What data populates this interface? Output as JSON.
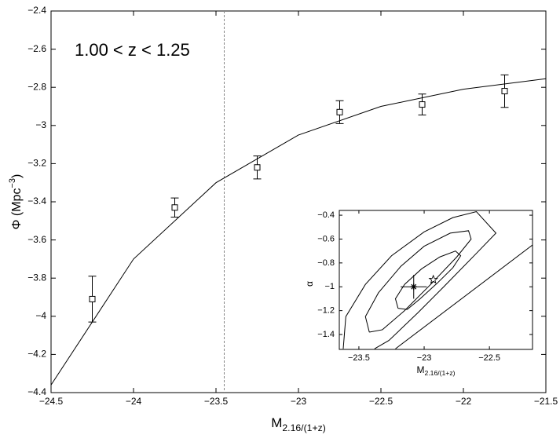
{
  "chart_data": [
    {
      "type": "line",
      "annotation": "1.00 < z < 1.25",
      "xlabel": {
        "text": "M",
        "subscript": "2.16/(1+z)"
      },
      "ylabel": {
        "text": "Φ (Mpc",
        "superscript": "−3",
        "suffix": ")"
      },
      "xlim": [
        -24.5,
        -21.5
      ],
      "xticks": [
        {
          "value": -24.5,
          "label": "−24.5"
        },
        {
          "value": -24,
          "label": "−24"
        },
        {
          "value": -23.5,
          "label": "−23.5"
        },
        {
          "value": -23,
          "label": "−23"
        },
        {
          "value": -22.5,
          "label": "−22.5"
        },
        {
          "value": -22,
          "label": "−22"
        },
        {
          "value": -21.5,
          "label": "−21.5"
        }
      ],
      "ylim": [
        -4.4,
        -2.4
      ],
      "yticks": [
        {
          "value": -2.4,
          "label": "−2.4"
        },
        {
          "value": -2.6,
          "label": "−2.6"
        },
        {
          "value": -2.8,
          "label": "−2.8"
        },
        {
          "value": -3,
          "label": "−3"
        },
        {
          "value": -3.2,
          "label": "−3.2"
        },
        {
          "value": -3.4,
          "label": "−3.4"
        },
        {
          "value": -3.6,
          "label": "−3.6"
        },
        {
          "value": -3.8,
          "label": "−3.8"
        },
        {
          "value": -4,
          "label": "−4"
        },
        {
          "value": -4.2,
          "label": "−4.2"
        },
        {
          "value": -4.4,
          "label": "−4.4"
        }
      ],
      "x": [
        -24.5,
        -24,
        -23.5,
        -23,
        -22.5,
        -22,
        -21.5
      ],
      "values": [
        -4.36,
        -3.7,
        -3.3,
        -3.05,
        -2.9,
        -2.81,
        -2.755
      ],
      "color": "#000000",
      "markers": {
        "x": [
          -24.25,
          -23.75,
          -23.25,
          -22.75,
          -22.25,
          -21.75
        ],
        "values": [
          -3.91,
          -3.43,
          -3.22,
          -2.93,
          -2.89,
          -2.82
        ],
        "errors": [
          0.12,
          0.05,
          0.06,
          0.06,
          0.055,
          0.085
        ]
      },
      "vline": -23.45
    },
    {
      "type": "contour",
      "xlabel": {
        "text": "M",
        "subscript": "2.16/(1+z)"
      },
      "ylabel": "α",
      "xlim": [
        -23.65,
        -22.17
      ],
      "xticks": [
        {
          "value": -23.5,
          "label": "−23.5"
        },
        {
          "value": -23,
          "label": "−23"
        },
        {
          "value": -22.5,
          "label": "−22.5"
        }
      ],
      "ylim": [
        -1.525,
        -0.36
      ],
      "yticks": [
        {
          "value": -0.4,
          "label": "−0.4"
        },
        {
          "value": -0.6,
          "label": "−0.6"
        },
        {
          "value": -0.8,
          "label": "−0.8"
        },
        {
          "value": -1,
          "label": "−1"
        },
        {
          "value": -1.2,
          "label": "−1.2"
        },
        {
          "value": -1.4,
          "label": "−1.4"
        }
      ],
      "contours": [
        {
          "x": [
            -23.2,
            -23.22,
            -23.15,
            -23.02,
            -22.88,
            -22.76,
            -22.72,
            -22.78,
            -22.9,
            -23.03,
            -23.13,
            -23.2
          ],
          "y": [
            -1.18,
            -1.1,
            -0.98,
            -0.85,
            -0.75,
            -0.7,
            -0.74,
            -0.84,
            -0.97,
            -1.1,
            -1.19,
            -1.18
          ]
        },
        {
          "x": [
            -23.42,
            -23.45,
            -23.35,
            -23.18,
            -23.0,
            -22.8,
            -22.66,
            -22.64,
            -22.75,
            -22.95,
            -23.15,
            -23.32,
            -23.42
          ],
          "y": [
            -1.38,
            -1.25,
            -1.05,
            -0.83,
            -0.66,
            -0.55,
            -0.53,
            -0.6,
            -0.75,
            -0.98,
            -1.2,
            -1.36,
            -1.38
          ]
        },
        {
          "x": [
            -23.62,
            -23.6,
            -23.45,
            -23.25,
            -23.0,
            -22.78,
            -22.6,
            -22.45,
            -22.6,
            -22.85,
            -23.05,
            -23.27,
            -23.38
          ],
          "y": [
            -1.52,
            -1.25,
            -0.98,
            -0.74,
            -0.54,
            -0.42,
            -0.37,
            -0.55,
            -0.72,
            -1.0,
            -1.22,
            -1.45,
            -1.52
          ]
        },
        {
          "x": [
            -23.22,
            -22.17
          ],
          "y": [
            -1.52,
            -0.65
          ]
        }
      ],
      "best_fit": {
        "x": -23.08,
        "y": -1.0,
        "xerr": 0.1,
        "yerr": 0.1
      },
      "point": {
        "x": -22.93,
        "y": -0.94
      }
    }
  ]
}
